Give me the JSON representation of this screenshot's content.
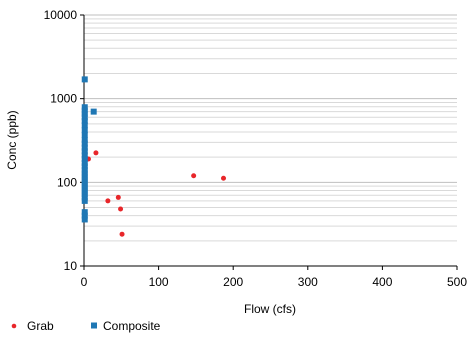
{
  "chart_data": {
    "type": "scatter",
    "xlabel": "Flow (cfs)",
    "ylabel": "Conc (ppb)",
    "x_ticks": [
      0,
      100,
      200,
      300,
      400,
      500
    ],
    "y_ticks": [
      10,
      100,
      1000,
      10000
    ],
    "xlim": [
      0,
      500
    ],
    "ylim": [
      10,
      10000
    ],
    "y_scale": "log",
    "grid": "horizontal minor and major lines on log scale",
    "legend_position": "bottom-left",
    "series": [
      {
        "name": "Grab",
        "marker": "circle",
        "color": "#e8262a",
        "points": [
          {
            "x": 1,
            "y": 37
          },
          {
            "x": 6,
            "y": 190
          },
          {
            "x": 16,
            "y": 225
          },
          {
            "x": 32,
            "y": 60
          },
          {
            "x": 46,
            "y": 66
          },
          {
            "x": 49,
            "y": 48
          },
          {
            "x": 51,
            "y": 24
          },
          {
            "x": 147,
            "y": 120
          },
          {
            "x": 187,
            "y": 112
          }
        ]
      },
      {
        "name": "Composite",
        "marker": "square",
        "color": "#1f77b4",
        "points": [
          {
            "x": 1,
            "y": 1700
          },
          {
            "x": 1,
            "y": 790
          },
          {
            "x": 1,
            "y": 720
          },
          {
            "x": 1,
            "y": 660
          },
          {
            "x": 1,
            "y": 600
          },
          {
            "x": 1,
            "y": 540
          },
          {
            "x": 1,
            "y": 480
          },
          {
            "x": 1,
            "y": 420
          },
          {
            "x": 1,
            "y": 370
          },
          {
            "x": 1,
            "y": 320
          },
          {
            "x": 1,
            "y": 290
          },
          {
            "x": 1,
            "y": 260
          },
          {
            "x": 1,
            "y": 235
          },
          {
            "x": 1,
            "y": 210
          },
          {
            "x": 1,
            "y": 190
          },
          {
            "x": 1,
            "y": 170
          },
          {
            "x": 1,
            "y": 155
          },
          {
            "x": 1,
            "y": 140
          },
          {
            "x": 1,
            "y": 128
          },
          {
            "x": 1,
            "y": 118
          },
          {
            "x": 1,
            "y": 108
          },
          {
            "x": 1,
            "y": 100
          },
          {
            "x": 1,
            "y": 92
          },
          {
            "x": 1,
            "y": 85
          },
          {
            "x": 1,
            "y": 78
          },
          {
            "x": 1,
            "y": 72
          },
          {
            "x": 1,
            "y": 66
          },
          {
            "x": 1,
            "y": 60
          },
          {
            "x": 1,
            "y": 44
          },
          {
            "x": 1,
            "y": 40
          },
          {
            "x": 1,
            "y": 36
          },
          {
            "x": 13,
            "y": 700
          }
        ]
      }
    ]
  }
}
